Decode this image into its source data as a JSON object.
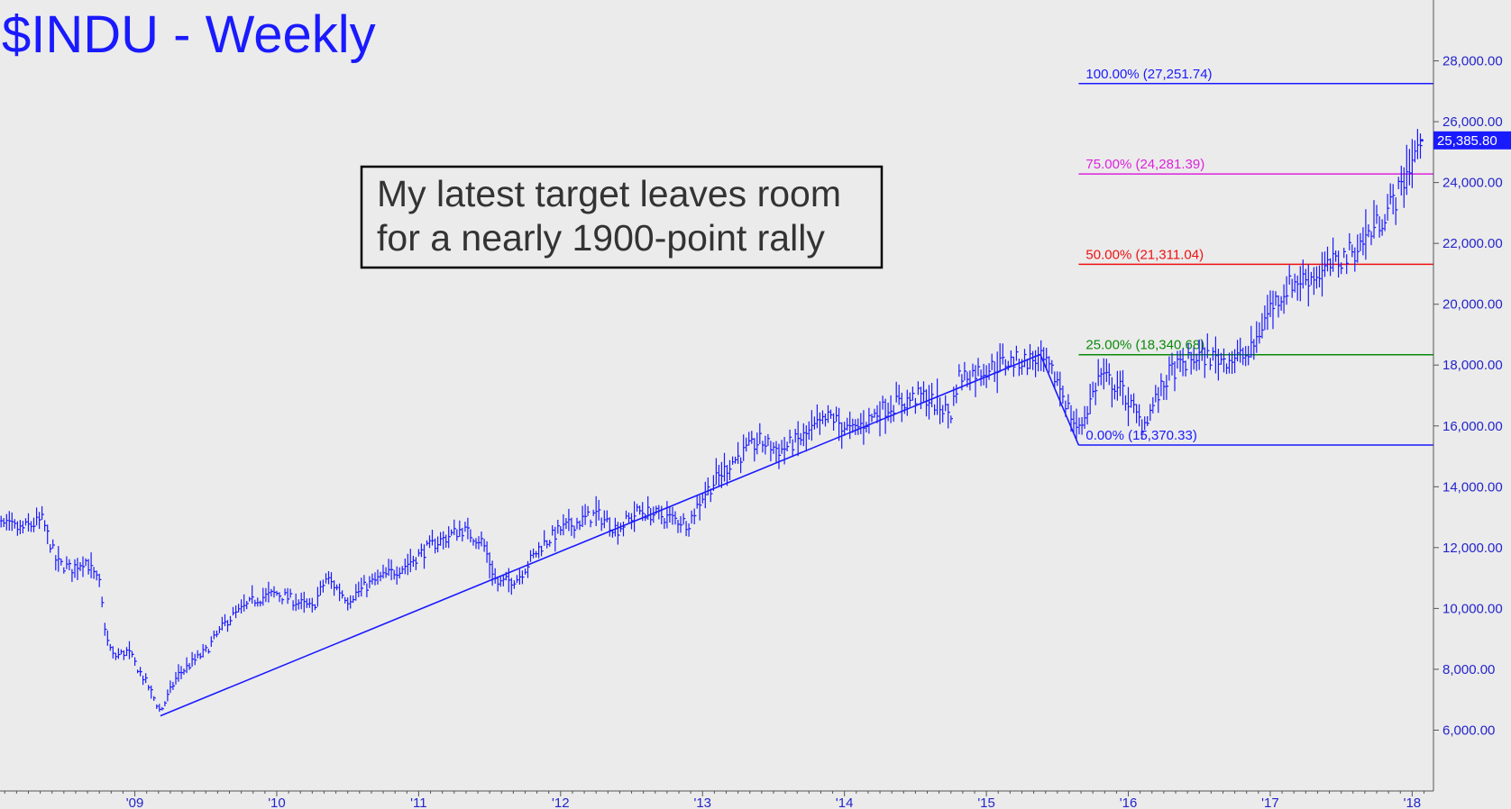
{
  "chart_data": {
    "type": "line",
    "title": "$INDU - Weekly",
    "x_tick_labels": [
      "'09",
      "'10",
      "'11",
      "'12",
      "'13",
      "'14",
      "'15",
      "'16",
      "'17",
      "'18"
    ],
    "x_range": [
      2008.05,
      2018.15
    ],
    "y_tick_labels": [
      "6,000.00",
      "8,000.00",
      "10,000.00",
      "12,000.00",
      "14,000.00",
      "16,000.00",
      "18,000.00",
      "20,000.00",
      "22,000.00",
      "24,000.00",
      "26,000.00",
      "28,000.00"
    ],
    "y_range": [
      4000,
      30000
    ],
    "grid": false,
    "last_price": {
      "value": 25385.8,
      "label": "25,385.80",
      "color": "#1a1aff"
    },
    "series": [
      {
        "x": [
          2008.0,
          2008.2,
          2008.35,
          2008.45,
          2008.55,
          2008.65,
          2008.75,
          2008.8,
          2008.85,
          2008.95,
          2009.1,
          2009.18,
          2009.3,
          2009.5,
          2009.65,
          2009.85,
          2010.0,
          2010.25,
          2010.35,
          2010.5,
          2010.65,
          2010.9,
          2011.1,
          2011.3,
          2011.45,
          2011.55,
          2011.7,
          2011.85,
          2012.0,
          2012.25,
          2012.4,
          2012.55,
          2012.75,
          2012.9,
          2013.0,
          2013.2,
          2013.4,
          2013.55,
          2013.7,
          2013.9,
          2014.05,
          2014.25,
          2014.35,
          2014.55,
          2014.75,
          2014.8,
          2014.95,
          2015.15,
          2015.38,
          2015.5,
          2015.6,
          2015.65,
          2015.8,
          2015.95,
          2016.1,
          2016.3,
          2016.5,
          2016.65,
          2016.85,
          2017.0,
          2017.15,
          2017.35,
          2017.6,
          2017.75,
          2017.9,
          2018.0,
          2018.07
        ],
        "values": [
          12800,
          12600,
          12900,
          11500,
          11300,
          11600,
          10800,
          9000,
          8400,
          8600,
          7400,
          6600,
          7800,
          8600,
          9600,
          10300,
          10500,
          10000,
          11000,
          10300,
          10800,
          11400,
          12100,
          12600,
          12200,
          10800,
          11000,
          12000,
          12600,
          13100,
          12600,
          13200,
          13000,
          12800,
          13700,
          14800,
          15500,
          15200,
          15600,
          16300,
          15800,
          16500,
          16700,
          17000,
          16400,
          17600,
          17800,
          18100,
          18200,
          17500,
          16300,
          15800,
          17700,
          17200,
          16000,
          17800,
          18300,
          18200,
          18300,
          19900,
          20700,
          21000,
          21800,
          22600,
          23600,
          24800,
          25386
        ]
      }
    ],
    "trendlines": [
      {
        "from": [
          2009.18,
          6470
        ],
        "to": [
          2015.38,
          18350
        ]
      },
      {
        "from": [
          2015.38,
          18350
        ],
        "to": [
          2015.65,
          15370
        ]
      }
    ],
    "fibonacci_levels": [
      {
        "label": "0.00% (15,370.33)",
        "value": 15370.33,
        "color": "#1a1aff"
      },
      {
        "label": "25.00% (18,340.68)",
        "value": 18340.68,
        "color": "#0a8a0a"
      },
      {
        "label": "50.00% (21,311.04)",
        "value": 21311.04,
        "color": "#ee1111"
      },
      {
        "label": "75.00% (24,281.39)",
        "value": 24281.39,
        "color": "#dd22dd"
      },
      {
        "label": "100.00% (27,251.74)",
        "value": 27251.74,
        "color": "#1a1aff"
      }
    ],
    "fib_start_x": 2015.65,
    "annotation": {
      "lines": [
        "My latest target leaves room",
        "for a nearly 1900-point rally"
      ]
    }
  }
}
